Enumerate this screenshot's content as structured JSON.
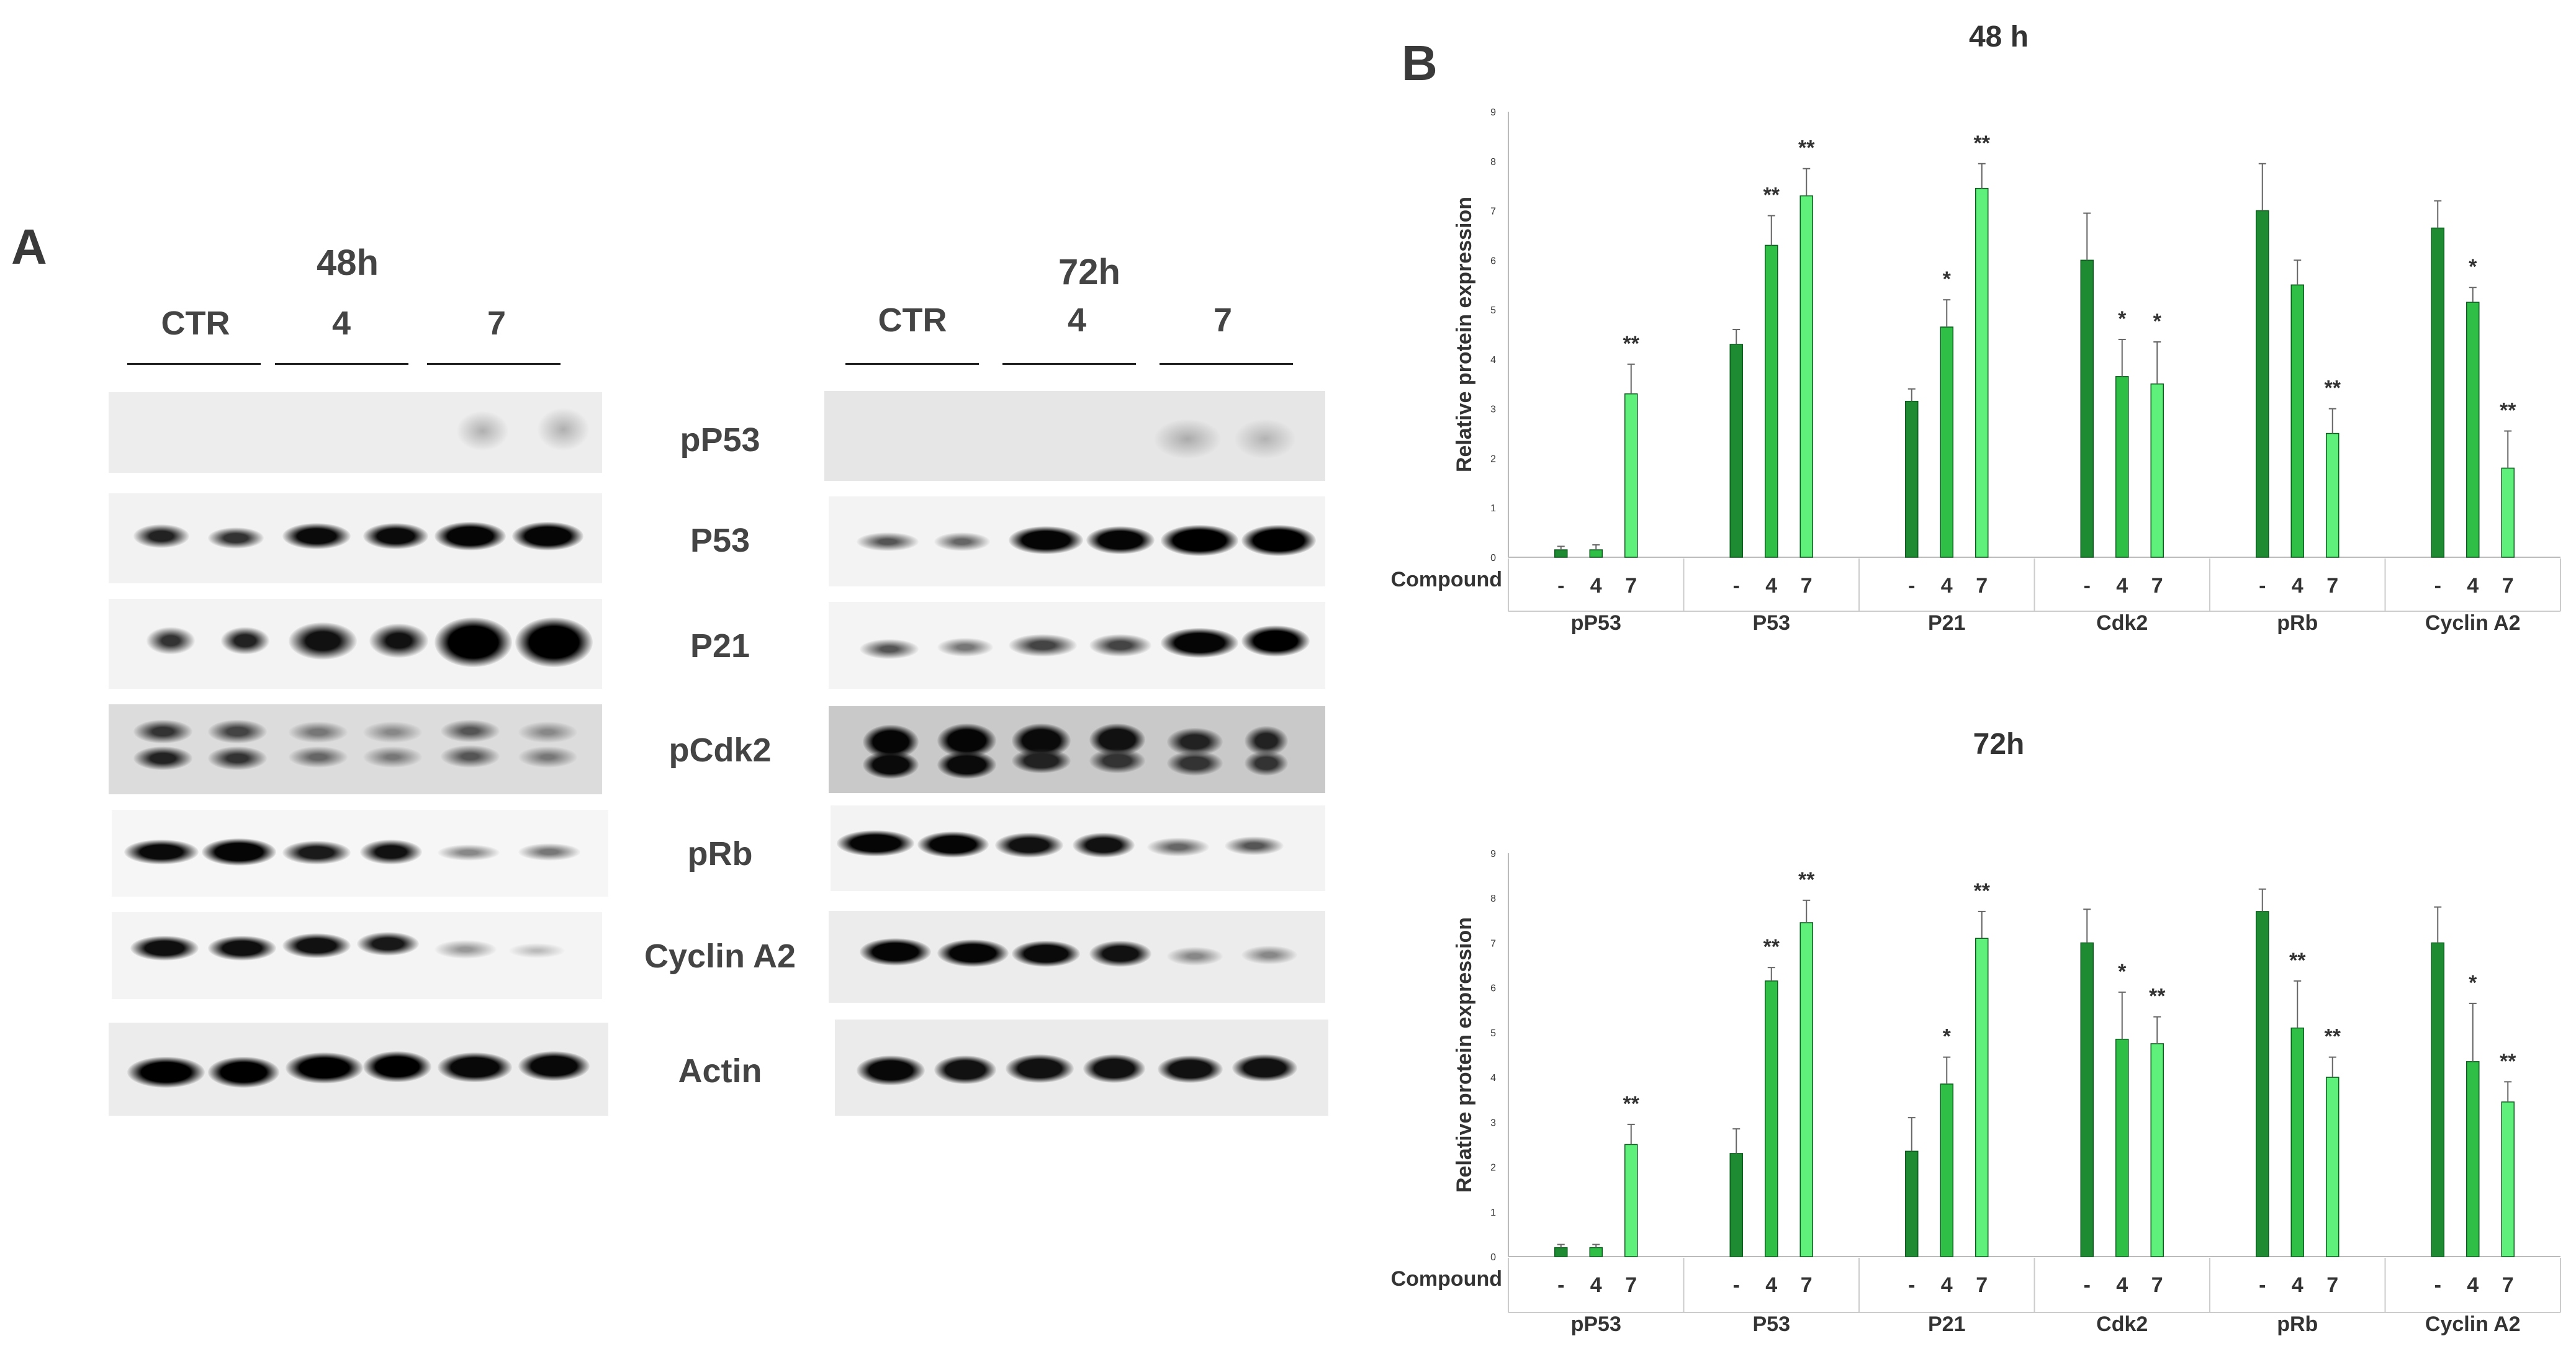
{
  "panels": {
    "a_letter": "A",
    "b_letter": "B"
  },
  "blots": {
    "left": {
      "title": "48h",
      "lanes": [
        "CTR",
        "4",
        "7"
      ]
    },
    "right": {
      "title": "72h",
      "lanes": [
        "CTR",
        "4",
        "7"
      ]
    },
    "proteins": [
      "pP53",
      "P53",
      "P21",
      "pCdk2",
      "pRb",
      "Cyclin A2",
      "Actin"
    ]
  },
  "chart_data": [
    {
      "type": "bar",
      "title": "48 h",
      "ylabel": "Relative protein expression",
      "xlabel_prefix": "Compound",
      "ylim": [
        0,
        9
      ],
      "yticks": [
        "0",
        "1",
        "2",
        "3",
        "4",
        "5",
        "6",
        "7",
        "8",
        "9"
      ],
      "groups": [
        "pP53",
        "P53",
        "P21",
        "Cdk2",
        "pRb",
        "Cyclin A2"
      ],
      "subcategories": [
        "-",
        "4",
        "7"
      ],
      "colors": [
        "#1e8a32",
        "#2fbf47",
        "#5ef07a"
      ],
      "values": [
        [
          0.15,
          0.15,
          3.3
        ],
        [
          4.3,
          6.3,
          7.3
        ],
        [
          3.15,
          4.65,
          7.45
        ],
        [
          6.0,
          3.65,
          3.5
        ],
        [
          7.0,
          5.5,
          2.5
        ],
        [
          6.65,
          5.15,
          1.8
        ]
      ],
      "errors": [
        [
          0.07,
          0.1,
          0.6
        ],
        [
          0.3,
          0.6,
          0.55
        ],
        [
          0.25,
          0.55,
          0.5
        ],
        [
          0.95,
          0.75,
          0.85
        ],
        [
          0.95,
          0.5,
          0.5
        ],
        [
          0.55,
          0.3,
          0.75
        ]
      ],
      "significance": [
        [
          "",
          "",
          "**"
        ],
        [
          "",
          "**",
          "**"
        ],
        [
          "",
          "*",
          "**"
        ],
        [
          "",
          "*",
          "*"
        ],
        [
          "",
          "",
          "**"
        ],
        [
          "",
          "*",
          "**"
        ]
      ]
    },
    {
      "type": "bar",
      "title": "72h",
      "ylabel": "Relative protein expression",
      "xlabel_prefix": "Compound",
      "ylim": [
        0,
        9
      ],
      "yticks": [
        "0",
        "1",
        "2",
        "3",
        "4",
        "5",
        "6",
        "7",
        "8",
        "9"
      ],
      "groups": [
        "pP53",
        "P53",
        "P21",
        "Cdk2",
        "pRb",
        "Cyclin A2"
      ],
      "subcategories": [
        "-",
        "4",
        "7"
      ],
      "colors": [
        "#1e8a32",
        "#2fbf47",
        "#5ef07a"
      ],
      "values": [
        [
          0.2,
          0.2,
          2.5
        ],
        [
          2.3,
          6.15,
          7.45
        ],
        [
          2.35,
          3.85,
          7.1
        ],
        [
          7.0,
          4.85,
          4.75
        ],
        [
          7.7,
          5.1,
          4.0
        ],
        [
          7.0,
          4.35,
          3.45
        ]
      ],
      "errors": [
        [
          0.07,
          0.07,
          0.45
        ],
        [
          0.55,
          0.3,
          0.5
        ],
        [
          0.75,
          0.6,
          0.6
        ],
        [
          0.75,
          1.05,
          0.6
        ],
        [
          0.5,
          1.05,
          0.45
        ],
        [
          0.8,
          1.3,
          0.45
        ]
      ],
      "significance": [
        [
          "",
          "",
          "**"
        ],
        [
          "",
          "**",
          "**"
        ],
        [
          "",
          "*",
          "**"
        ],
        [
          "",
          "*",
          "**"
        ],
        [
          "",
          "**",
          "**"
        ],
        [
          "",
          "*",
          "**"
        ]
      ]
    }
  ]
}
